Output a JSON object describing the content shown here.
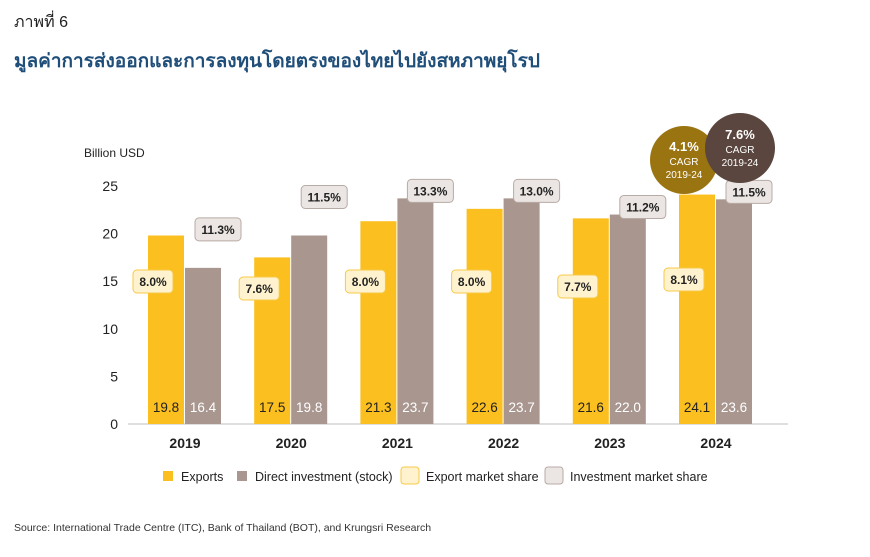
{
  "figure_label": "ภาพที่ 6",
  "title": "มูลค่าการส่งออกและการลงทุนโดยตรงของไทยไปยังสหภาพยุโรป",
  "source": "Source: International Trade Centre (ITC), Bank of Thailand (BOT), and Krungsri Research",
  "colors": {
    "exports": "#fbbf1f",
    "investment": "#a8968f",
    "export_share_fill": "#fff3cf",
    "export_share_border": "#f7c948",
    "invest_share_fill": "#ebe6e3",
    "invest_share_border": "#b8aaa4",
    "cagr_exports": "#9b7412",
    "cagr_investment": "#5a463f",
    "axis_text": "#222222"
  },
  "chart_data": {
    "type": "bar",
    "ylabel": "Billion USD",
    "ylim": [
      0,
      25
    ],
    "yticks": [
      0,
      5,
      10,
      15,
      20,
      25
    ],
    "grid": false,
    "legend_position": "bottom",
    "categories": [
      "2019",
      "2020",
      "2021",
      "2022",
      "2023",
      "2024"
    ],
    "series": [
      {
        "name": "Exports",
        "key": "exports",
        "values": [
          19.8,
          17.5,
          21.3,
          22.6,
          21.6,
          24.1
        ],
        "value_labels": [
          "19.8",
          "17.5",
          "21.3",
          "22.6",
          "21.6",
          "24.1"
        ]
      },
      {
        "name": "Direct investment (stock)",
        "key": "investment",
        "values": [
          16.4,
          19.8,
          23.7,
          23.7,
          22.0,
          23.6
        ],
        "value_labels": [
          "16.4",
          "19.8",
          "23.7",
          "23.7",
          "22.0",
          "23.6"
        ]
      }
    ],
    "market_share": [
      {
        "name": "Export market share",
        "key": "export_share",
        "labels": [
          "8.0%",
          "7.6%",
          "8.0%",
          "8.0%",
          "7.7%",
          "8.1%"
        ]
      },
      {
        "name": "Investment market share",
        "key": "invest_share",
        "labels": [
          "11.3%",
          "11.5%",
          "13.3%",
          "13.0%",
          "11.2%",
          "11.5%"
        ]
      }
    ],
    "cagr": [
      {
        "series": "exports",
        "value": "4.1%",
        "label": "CAGR",
        "period": "2019-24"
      },
      {
        "series": "investment",
        "value": "7.6%",
        "label": "CAGR",
        "period": "2019-24"
      }
    ]
  }
}
